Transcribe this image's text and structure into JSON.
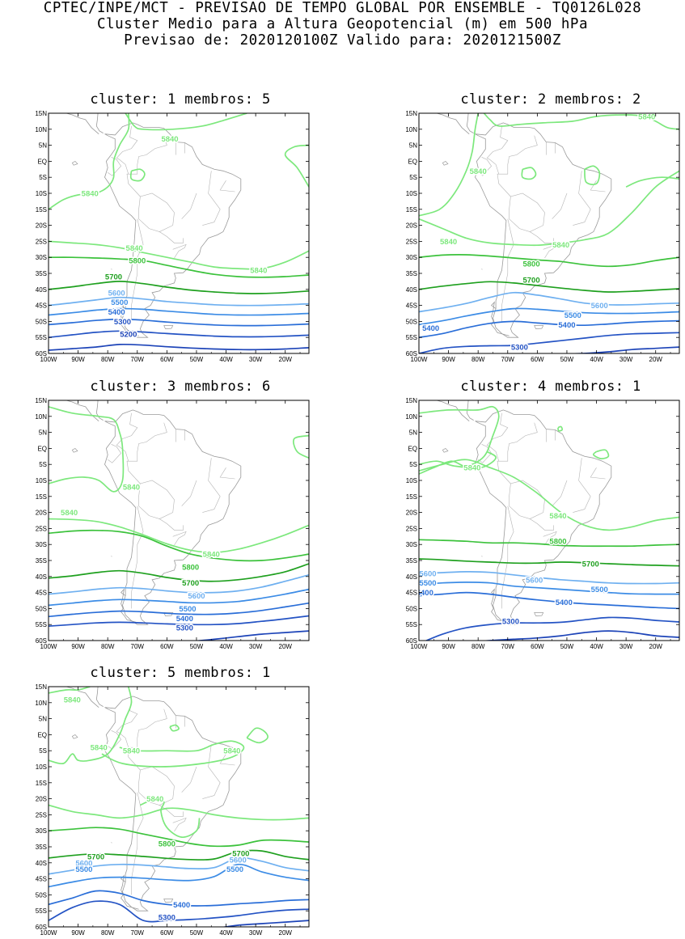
{
  "header": {
    "line1": "CPTEC/INPE/MCT - PREVISAO DE TEMPO GLOBAL POR ENSEMBLE - TQ0126L028",
    "line2": "Cluster Medio para a Altura Geopotencial (m) em 500 hPa",
    "line3": "Previsao de: 2020120100Z    Valido para: 2020121500Z"
  },
  "axes": {
    "lat_labels": [
      "15N",
      "10N",
      "5N",
      "EQ",
      "5S",
      "10S",
      "15S",
      "20S",
      "25S",
      "30S",
      "35S",
      "40S",
      "45S",
      "50S",
      "55S",
      "60S"
    ],
    "lon_labels": [
      "100W",
      "90W",
      "80W",
      "70W",
      "60W",
      "50W",
      "40W",
      "30W",
      "20W"
    ]
  },
  "colors": {
    "c5840": "#7de87d",
    "c5800": "#3cc23c",
    "c5700": "#1fa01f",
    "c5600": "#6fb0f0",
    "c5500": "#3c8ce6",
    "c5400": "#2a6ed8",
    "c5300": "#2453c4",
    "c5200": "#1d44b8",
    "c5100": "#5b3cc8",
    "land": "#9a9a9a"
  },
  "clusters": [
    {
      "title": "cluster: 1   membros: 5",
      "labels": [
        {
          "text": "5840",
          "lon": -59,
          "lat": 7,
          "color": "c5840"
        },
        {
          "text": "5840",
          "lon": -86,
          "lat": -10,
          "color": "c5840"
        },
        {
          "text": "5840",
          "lon": -71,
          "lat": -27,
          "color": "c5840"
        },
        {
          "text": "5840",
          "lon": -29,
          "lat": -34,
          "color": "c5840"
        },
        {
          "text": "5800",
          "lon": -70,
          "lat": -31,
          "color": "c5800"
        },
        {
          "text": "5700",
          "lon": -78,
          "lat": -36,
          "color": "c5700"
        },
        {
          "text": "5600",
          "lon": -77,
          "lat": -41,
          "color": "c5600"
        },
        {
          "text": "5500",
          "lon": -76,
          "lat": -44,
          "color": "c5500"
        },
        {
          "text": "5400",
          "lon": -77,
          "lat": -47,
          "color": "c5400"
        },
        {
          "text": "5300",
          "lon": -75,
          "lat": -50,
          "color": "c5300"
        },
        {
          "text": "5200",
          "lon": -73,
          "lat": -54,
          "color": "c5200"
        }
      ]
    },
    {
      "title": "cluster: 2   membros: 2",
      "labels": [
        {
          "text": "5840",
          "lon": -23,
          "lat": 14,
          "color": "c5840"
        },
        {
          "text": "5840",
          "lon": -90,
          "lat": -25,
          "color": "c5840"
        },
        {
          "text": "5840",
          "lon": -80,
          "lat": -3,
          "color": "c5840"
        },
        {
          "text": "5840",
          "lon": -52,
          "lat": -26,
          "color": "c5840"
        },
        {
          "text": "5800",
          "lon": -62,
          "lat": -32,
          "color": "c5800"
        },
        {
          "text": "5700",
          "lon": -62,
          "lat": -37,
          "color": "c5700"
        },
        {
          "text": "5600",
          "lon": -39,
          "lat": -45,
          "color": "c5600"
        },
        {
          "text": "5500",
          "lon": -48,
          "lat": -48,
          "color": "c5500"
        },
        {
          "text": "5400",
          "lon": -50,
          "lat": -51,
          "color": "c5400"
        },
        {
          "text": "5400",
          "lon": -96,
          "lat": -52,
          "color": "c5400"
        },
        {
          "text": "5300",
          "lon": -66,
          "lat": -58,
          "color": "c5300"
        }
      ]
    },
    {
      "title": "cluster: 3   membros: 6",
      "labels": [
        {
          "text": "5840",
          "lon": -72,
          "lat": -12,
          "color": "c5840"
        },
        {
          "text": "5840",
          "lon": -93,
          "lat": -20,
          "color": "c5840"
        },
        {
          "text": "5840",
          "lon": -45,
          "lat": -33,
          "color": "c5840"
        },
        {
          "text": "5800",
          "lon": -52,
          "lat": -37,
          "color": "c5800"
        },
        {
          "text": "5700",
          "lon": -52,
          "lat": -42,
          "color": "c5700"
        },
        {
          "text": "5600",
          "lon": -50,
          "lat": -46,
          "color": "c5600"
        },
        {
          "text": "5500",
          "lon": -53,
          "lat": -50,
          "color": "c5500"
        },
        {
          "text": "5400",
          "lon": -54,
          "lat": -53,
          "color": "c5400"
        },
        {
          "text": "5300",
          "lon": -54,
          "lat": -56,
          "color": "c5300"
        }
      ]
    },
    {
      "title": "cluster: 4   membros: 1",
      "labels": [
        {
          "text": "5840",
          "lon": -82,
          "lat": -6,
          "color": "c5840"
        },
        {
          "text": "5840",
          "lon": -53,
          "lat": -21,
          "color": "c5840"
        },
        {
          "text": "5800",
          "lon": -53,
          "lat": -29,
          "color": "c5800"
        },
        {
          "text": "5700",
          "lon": -42,
          "lat": -36,
          "color": "c5700"
        },
        {
          "text": "5600",
          "lon": -97,
          "lat": -39,
          "color": "c5600"
        },
        {
          "text": "5600",
          "lon": -61,
          "lat": -41,
          "color": "c5600"
        },
        {
          "text": "5500",
          "lon": -97,
          "lat": -42,
          "color": "c5500"
        },
        {
          "text": "5500",
          "lon": -39,
          "lat": -44,
          "color": "c5500"
        },
        {
          "text": "5400",
          "lon": -98,
          "lat": -45,
          "color": "c5400"
        },
        {
          "text": "5400",
          "lon": -51,
          "lat": -48,
          "color": "c5400"
        },
        {
          "text": "5300",
          "lon": -69,
          "lat": -54,
          "color": "c5300"
        }
      ]
    },
    {
      "title": "cluster: 5   membros: 1",
      "labels": [
        {
          "text": "5840",
          "lon": -92,
          "lat": 11,
          "color": "c5840"
        },
        {
          "text": "5840",
          "lon": -83,
          "lat": -4,
          "color": "c5840"
        },
        {
          "text": "5840",
          "lon": -72,
          "lat": -5,
          "color": "c5840"
        },
        {
          "text": "5840",
          "lon": -38,
          "lat": -5,
          "color": "c5840"
        },
        {
          "text": "5840",
          "lon": -64,
          "lat": -20,
          "color": "c5840"
        },
        {
          "text": "5800",
          "lon": -60,
          "lat": -34,
          "color": "c5800"
        },
        {
          "text": "5700",
          "lon": -84,
          "lat": -38,
          "color": "c5700"
        },
        {
          "text": "5700",
          "lon": -35,
          "lat": -37,
          "color": "c5700"
        },
        {
          "text": "5600",
          "lon": -88,
          "lat": -40,
          "color": "c5600"
        },
        {
          "text": "5600",
          "lon": -36,
          "lat": -39,
          "color": "c5600"
        },
        {
          "text": "5500",
          "lon": -88,
          "lat": -42,
          "color": "c5500"
        },
        {
          "text": "5500",
          "lon": -37,
          "lat": -42,
          "color": "c5500"
        },
        {
          "text": "5400",
          "lon": -55,
          "lat": -53,
          "color": "c5400"
        },
        {
          "text": "5300",
          "lon": -60,
          "lat": -57,
          "color": "c5300"
        }
      ]
    }
  ]
}
